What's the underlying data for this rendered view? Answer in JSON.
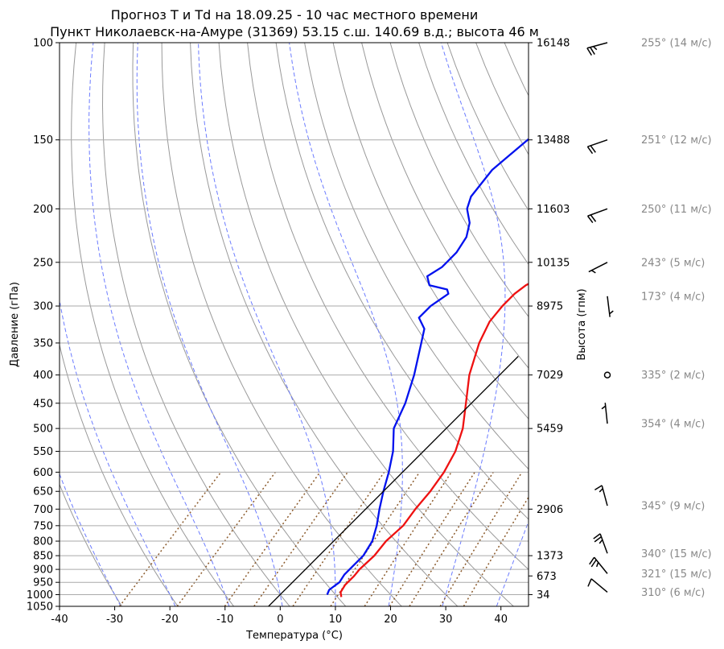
{
  "chart_data": {
    "type": "line",
    "title": "Прогноз T и Td на 18.09.25 - 10 час местного времени",
    "subtitle": "Пункт Николаевск-на-Амуре (31369) 53.15 с.ш. 140.69 в.д.; высота 46 м",
    "xlabel": "Температура (°C)",
    "ylabel": "Давление (гПа)",
    "ylabel_right": "Высота (гпм)",
    "xlim": [
      -40,
      45
    ],
    "ylim": [
      1050,
      100
    ],
    "y_scale": "log",
    "skew_t": true,
    "grid": true,
    "x_ticks": [
      "-40",
      "-30",
      "-20",
      "-10",
      "0",
      "10",
      "20",
      "30",
      "40"
    ],
    "y_ticks": [
      "100",
      "150",
      "200",
      "250",
      "300",
      "350",
      "400",
      "450",
      "500",
      "550",
      "600",
      "650",
      "700",
      "750",
      "800",
      "850",
      "900",
      "950",
      "1000",
      "1050"
    ],
    "height_ticks": [
      {
        "p": 100,
        "label": "16148"
      },
      {
        "p": 150,
        "label": "13488"
      },
      {
        "p": 200,
        "label": "11603"
      },
      {
        "p": 250,
        "label": "10135"
      },
      {
        "p": 300,
        "label": "8975"
      },
      {
        "p": 400,
        "label": "7029"
      },
      {
        "p": 500,
        "label": "5459"
      },
      {
        "p": 700,
        "label": "2906"
      },
      {
        "p": 850,
        "label": "1373"
      },
      {
        "p": 925,
        "label": "673"
      },
      {
        "p": 1000,
        "label": "34"
      }
    ],
    "series": [
      {
        "key": "temperature",
        "color": "#ee1111",
        "points": [
          [
            1010,
            11.5
          ],
          [
            990,
            10.5
          ],
          [
            960,
            10.0
          ],
          [
            925,
            10.0
          ],
          [
            900,
            9.8
          ],
          [
            850,
            10.0
          ],
          [
            800,
            9.5
          ],
          [
            750,
            9.8
          ],
          [
            700,
            9.0
          ],
          [
            650,
            8.5
          ],
          [
            600,
            7.5
          ],
          [
            550,
            5.8
          ],
          [
            500,
            3.0
          ],
          [
            450,
            -1.0
          ],
          [
            400,
            -5.5
          ],
          [
            350,
            -9.5
          ],
          [
            320,
            -11.5
          ],
          [
            300,
            -12.0
          ],
          [
            285,
            -12.0
          ],
          [
            275,
            -11.5
          ],
          [
            265,
            -10.0
          ],
          [
            250,
            -8.0
          ],
          [
            238,
            -4.0
          ],
          [
            225,
            -1.5
          ],
          [
            210,
            1.0
          ],
          [
            195,
            2.5
          ],
          [
            180,
            2.2
          ],
          [
            165,
            3.0
          ],
          [
            150,
            5.0
          ],
          [
            135,
            8.0
          ],
          [
            120,
            13.0
          ],
          [
            105,
            20.0
          ],
          [
            100,
            23.0
          ]
        ]
      },
      {
        "key": "dewpoint",
        "color": "#0011ee",
        "points": [
          [
            1000,
            8.5
          ],
          [
            980,
            8.0
          ],
          [
            950,
            8.5
          ],
          [
            920,
            8.0
          ],
          [
            900,
            8.0
          ],
          [
            850,
            8.0
          ],
          [
            800,
            7.0
          ],
          [
            750,
            5.0
          ],
          [
            700,
            2.5
          ],
          [
            650,
            0.0
          ],
          [
            600,
            -2.5
          ],
          [
            550,
            -5.5
          ],
          [
            500,
            -9.5
          ],
          [
            450,
            -12.0
          ],
          [
            400,
            -15.5
          ],
          [
            350,
            -20.0
          ],
          [
            330,
            -22.0
          ],
          [
            315,
            -25.0
          ],
          [
            300,
            -25.0
          ],
          [
            285,
            -24.0
          ],
          [
            280,
            -25.0
          ],
          [
            275,
            -29.0
          ],
          [
            265,
            -31.0
          ],
          [
            255,
            -30.0
          ],
          [
            250,
            -30.0
          ],
          [
            240,
            -30.0
          ],
          [
            225,
            -31.0
          ],
          [
            212,
            -33.0
          ],
          [
            200,
            -36.0
          ],
          [
            190,
            -37.5
          ],
          [
            170,
            -38.5
          ],
          [
            150,
            -37.5
          ],
          [
            140,
            -36.5
          ],
          [
            125,
            -38.0
          ],
          [
            110,
            -41.0
          ],
          [
            100,
            -44.0
          ]
        ]
      },
      {
        "key": "parcel",
        "color": "#000000",
        "points": [
          [
            1050,
            0.0
          ],
          [
            370,
            0.0
          ]
        ]
      }
    ],
    "wind": [
      {
        "p": 100,
        "dir": 255,
        "speed": 14,
        "label": "255° (14 м/с)"
      },
      {
        "p": 150,
        "dir": 251,
        "speed": 12,
        "label": "251° (12 м/с)"
      },
      {
        "p": 200,
        "dir": 250,
        "speed": 11,
        "label": "250° (11 м/с)"
      },
      {
        "p": 250,
        "dir": 243,
        "speed": 5,
        "label": "243° (5 м/с)"
      },
      {
        "p": 288,
        "dir": 173,
        "speed": 4,
        "label": "173° (4 м/с)"
      },
      {
        "p": 400,
        "dir": 335,
        "speed": 2,
        "label": "335° (2 м/с)"
      },
      {
        "p": 490,
        "dir": 354,
        "speed": 4,
        "label": "354° (4 м/с)"
      },
      {
        "p": 690,
        "dir": 345,
        "speed": 9,
        "label": "345° (9 м/с)"
      },
      {
        "p": 842,
        "dir": 340,
        "speed": 15,
        "label": "340° (15 м/с)"
      },
      {
        "p": 916,
        "dir": 321,
        "speed": 15,
        "label": "321° (15 м/с)"
      },
      {
        "p": 990,
        "dir": 310,
        "speed": 6,
        "label": "310° (6 м/с)"
      }
    ],
    "line_colors": {
      "isobar": "#aaaaaa",
      "dry_adiabat": "#999999",
      "moist_adiabat": "#6b7bff",
      "mixing_ratio": "#8b5a2b",
      "frame": "#000000"
    }
  }
}
